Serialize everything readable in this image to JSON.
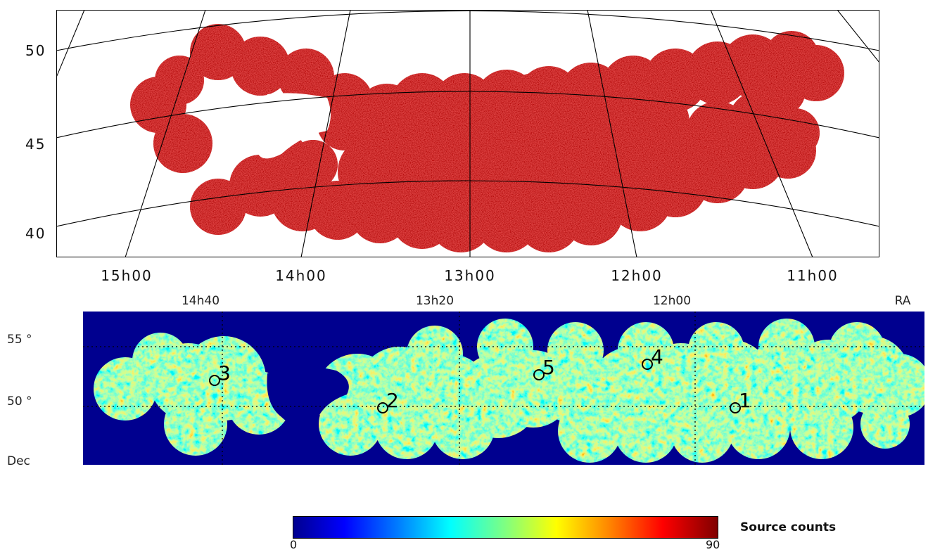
{
  "top_panel": {
    "dec_ticks": [
      "50",
      "45",
      "40"
    ],
    "ra_ticks": [
      "15h00",
      "14h00",
      "13h00",
      "12h00",
      "11h00"
    ],
    "fill_color": "#b40000"
  },
  "bottom_panel": {
    "ra_ticks": [
      "14h40",
      "13h20",
      "12h00"
    ],
    "ra_axis_label": "RA",
    "dec_ticks": [
      "55 °",
      "50 °"
    ],
    "dec_axis_label": "Dec",
    "background_color": "#00008f",
    "markers": [
      {
        "label": "1"
      },
      {
        "label": "2"
      },
      {
        "label": "3"
      },
      {
        "label": "4"
      },
      {
        "label": "5"
      }
    ]
  },
  "colorbar": {
    "min_label": "0",
    "max_label": "90",
    "title": "Source counts",
    "colormap": "jet"
  }
}
